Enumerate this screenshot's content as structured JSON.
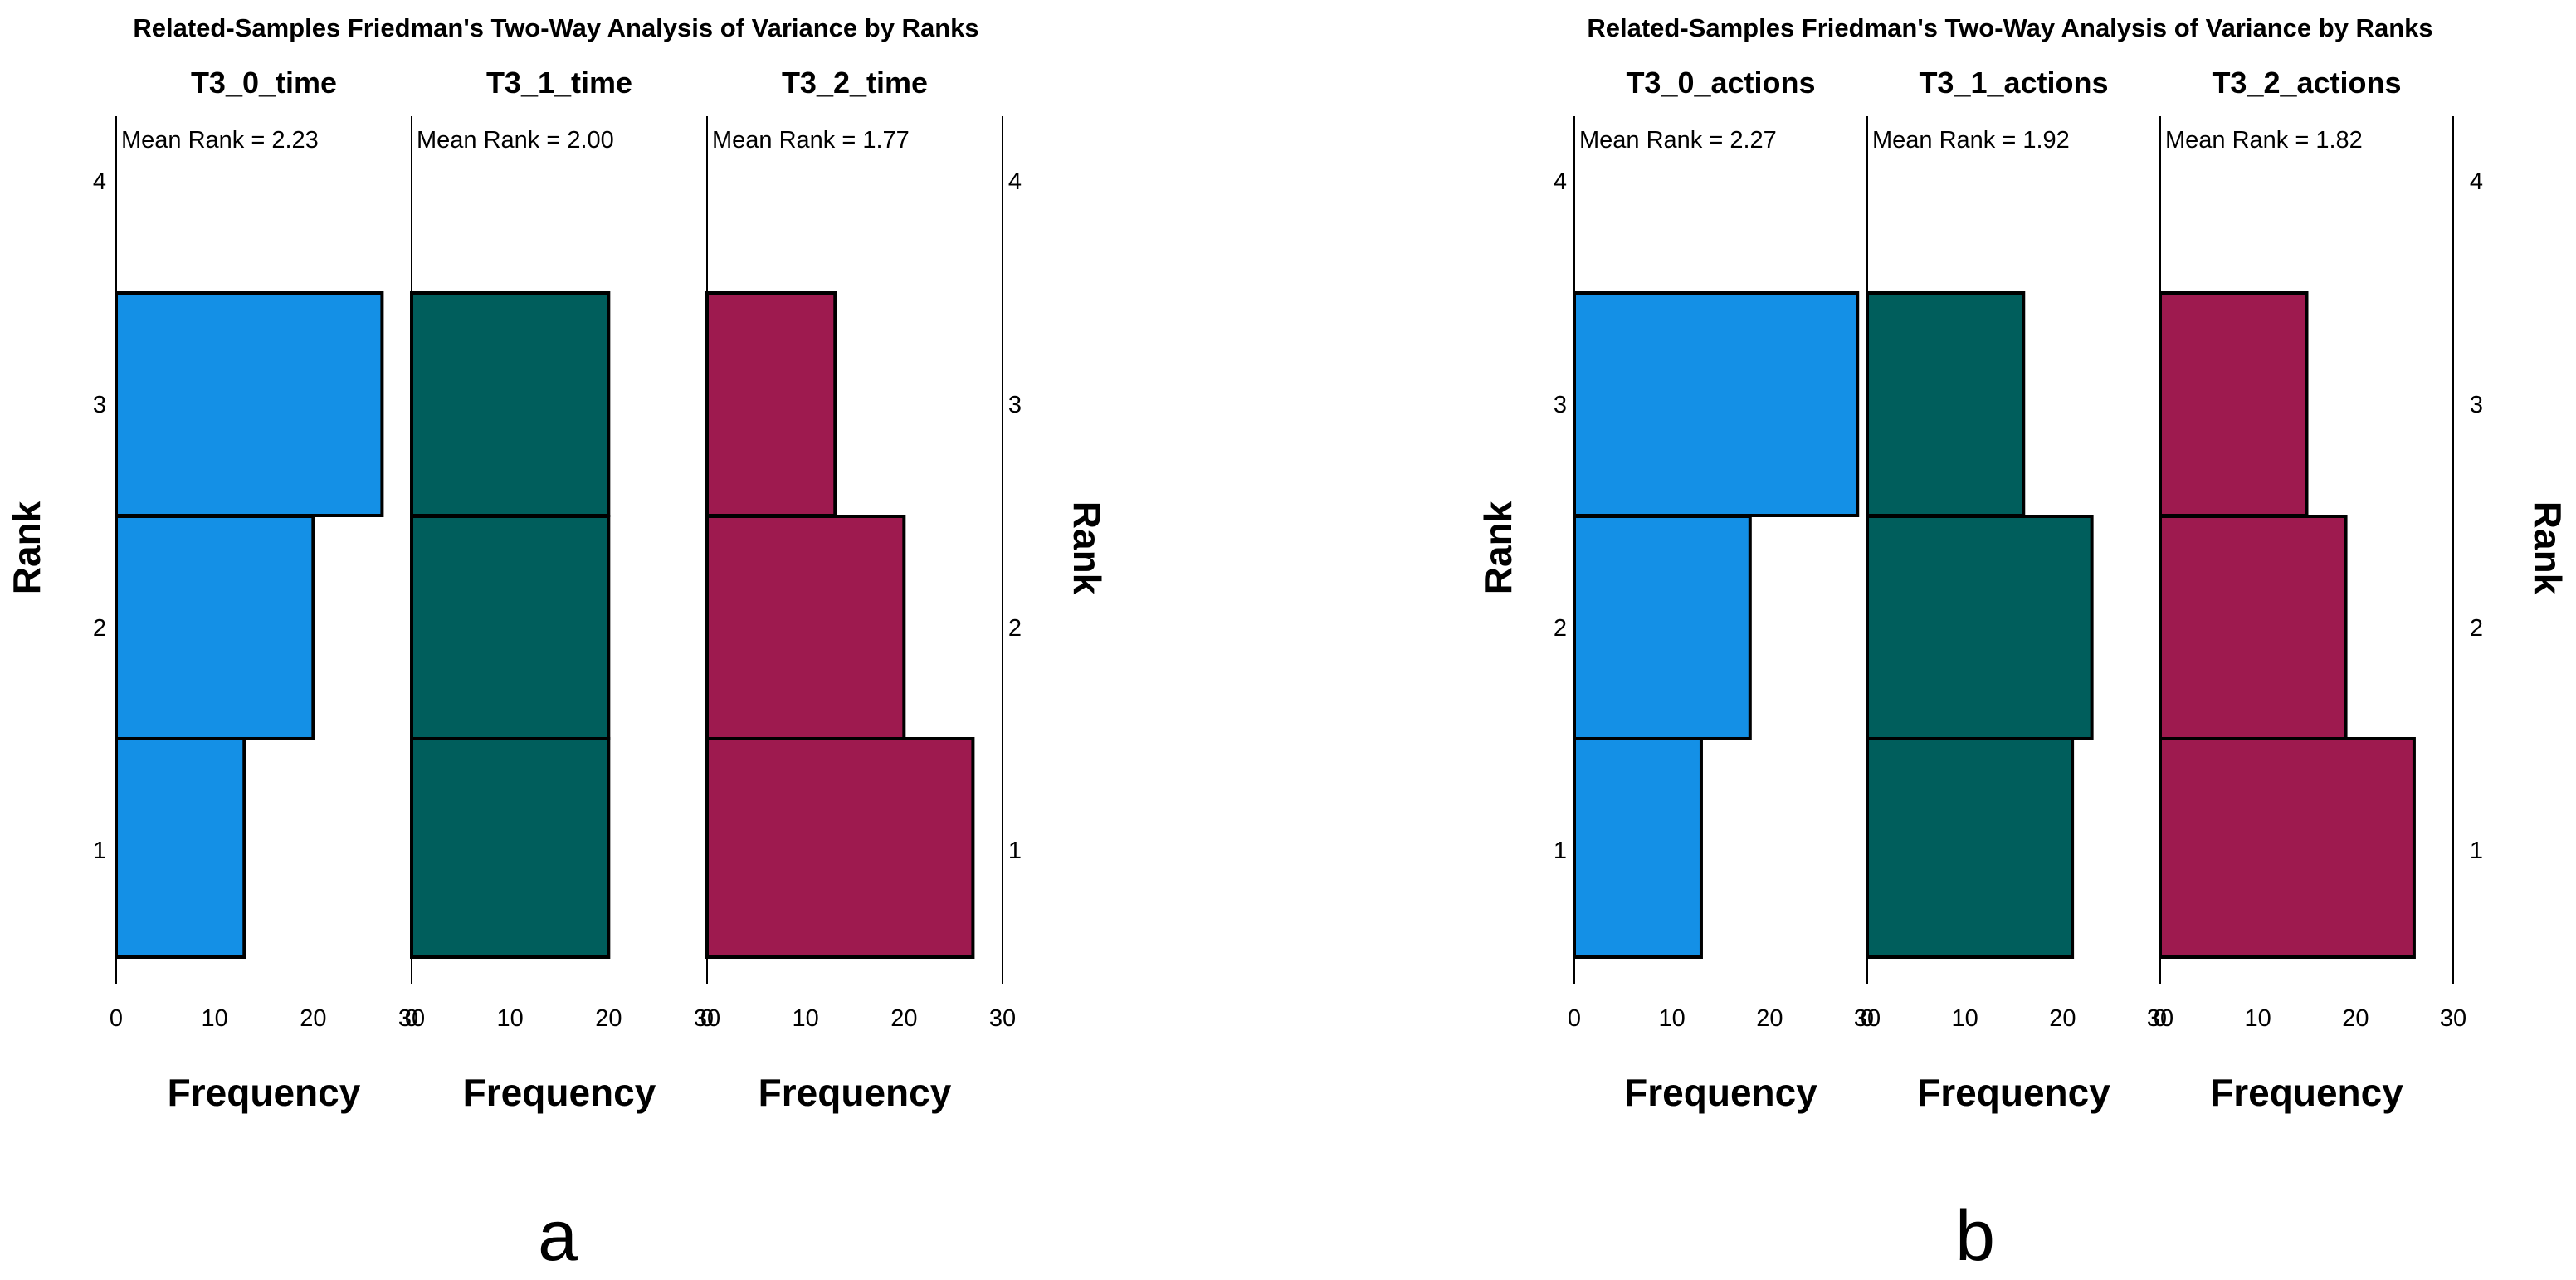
{
  "figure": {
    "panel_labels": [
      "a",
      "b"
    ]
  },
  "chart_data": [
    {
      "type": "bar",
      "orientation": "horizontal",
      "title": "Related-Samples Friedman's Two-Way Analysis of Variance by Ranks",
      "panel_label": "a",
      "ylabel": "Rank",
      "xlabel": "Frequency",
      "ylim": [
        0.5,
        4.5
      ],
      "y_ticks": [
        1,
        2,
        3,
        4
      ],
      "xlim": [
        0,
        30
      ],
      "x_ticks": [
        0,
        10,
        20,
        30
      ],
      "x_tick_labels": [
        "0",
        "10",
        "20",
        "30"
      ],
      "series": [
        {
          "name": "T3_0_time",
          "mean_rank_label": "Mean Rank = 2.23",
          "color": "#1490e6",
          "ranks": [
            1,
            2,
            3
          ],
          "values": [
            13,
            20,
            27
          ]
        },
        {
          "name": "T3_1_time",
          "mean_rank_label": "Mean Rank = 2.00",
          "color": "#005e5c",
          "ranks": [
            1,
            2,
            3
          ],
          "values": [
            20,
            20,
            20
          ]
        },
        {
          "name": "T3_2_time",
          "mean_rank_label": "Mean Rank = 1.77",
          "color": "#9e1a4f",
          "ranks": [
            1,
            2,
            3
          ],
          "values": [
            27,
            20,
            13
          ]
        }
      ]
    },
    {
      "type": "bar",
      "orientation": "horizontal",
      "title": "Related-Samples Friedman's Two-Way Analysis of Variance by Ranks",
      "panel_label": "b",
      "ylabel": "Rank",
      "xlabel": "Frequency",
      "ylim": [
        0.5,
        4.5
      ],
      "y_ticks": [
        1,
        2,
        3,
        4
      ],
      "xlim": [
        0,
        30
      ],
      "x_ticks": [
        0,
        10,
        20,
        30
      ],
      "x_tick_labels": [
        "0",
        "10",
        "20",
        "30"
      ],
      "series": [
        {
          "name": "T3_0_actions",
          "mean_rank_label": "Mean Rank = 2.27",
          "color": "#1490e6",
          "ranks": [
            1,
            2,
            3
          ],
          "values": [
            13,
            18,
            29
          ]
        },
        {
          "name": "T3_1_actions",
          "mean_rank_label": "Mean Rank = 1.92",
          "color": "#005e5c",
          "ranks": [
            1,
            2,
            3
          ],
          "values": [
            21,
            23,
            16
          ]
        },
        {
          "name": "T3_2_actions",
          "mean_rank_label": "Mean Rank = 1.82",
          "color": "#9e1a4f",
          "ranks": [
            1,
            2,
            3
          ],
          "values": [
            26,
            19,
            15
          ]
        }
      ]
    }
  ]
}
